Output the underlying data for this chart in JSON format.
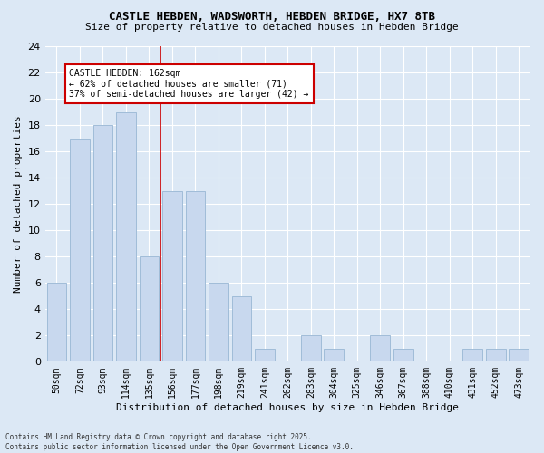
{
  "title_line1": "CASTLE HEBDEN, WADSWORTH, HEBDEN BRIDGE, HX7 8TB",
  "title_line2": "Size of property relative to detached houses in Hebden Bridge",
  "xlabel": "Distribution of detached houses by size in Hebden Bridge",
  "ylabel": "Number of detached properties",
  "categories": [
    "50sqm",
    "72sqm",
    "93sqm",
    "114sqm",
    "135sqm",
    "156sqm",
    "177sqm",
    "198sqm",
    "219sqm",
    "241sqm",
    "262sqm",
    "283sqm",
    "304sqm",
    "325sqm",
    "346sqm",
    "367sqm",
    "388sqm",
    "410sqm",
    "431sqm",
    "452sqm",
    "473sqm"
  ],
  "values": [
    6,
    17,
    18,
    19,
    8,
    13,
    13,
    6,
    5,
    1,
    0,
    2,
    1,
    0,
    2,
    1,
    0,
    0,
    1,
    1,
    1
  ],
  "bar_color": "#c8d8ee",
  "bar_edge_color": "#a0bcd8",
  "vline_color": "#cc0000",
  "vline_x": 4.5,
  "annotation_title": "CASTLE HEBDEN: 162sqm",
  "annotation_line1": "← 62% of detached houses are smaller (71)",
  "annotation_line2": "37% of semi-detached houses are larger (42) →",
  "annotation_box_color": "#cc0000",
  "ylim": [
    0,
    24
  ],
  "yticks": [
    0,
    2,
    4,
    6,
    8,
    10,
    12,
    14,
    16,
    18,
    20,
    22,
    24
  ],
  "footnote_line1": "Contains HM Land Registry data © Crown copyright and database right 2025.",
  "footnote_line2": "Contains public sector information licensed under the Open Government Licence v3.0.",
  "bg_color": "#dce8f5",
  "plot_bg_color": "#dce8f5",
  "title_fontsize": 9,
  "subtitle_fontsize": 8,
  "ylabel_fontsize": 8,
  "xlabel_fontsize": 8,
  "ytick_fontsize": 8,
  "xtick_fontsize": 7,
  "annot_fontsize": 7,
  "footnote_fontsize": 5.5
}
